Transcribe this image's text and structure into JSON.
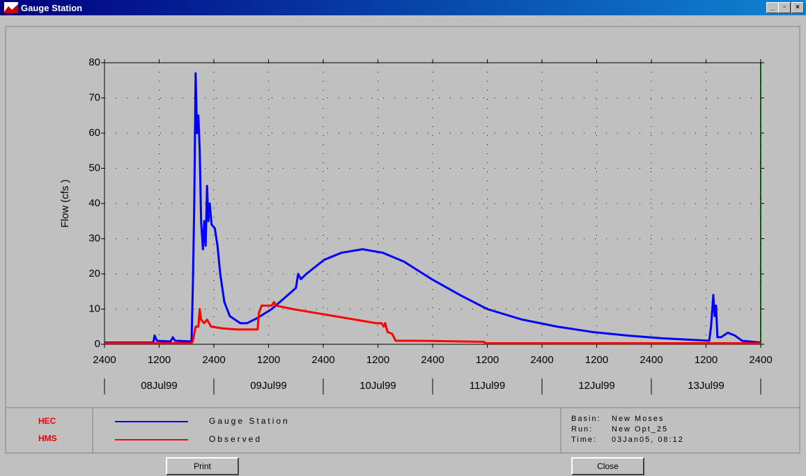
{
  "window": {
    "title": "Gauge Station"
  },
  "chart_data": {
    "type": "line",
    "y_label": "Flow (cfs   )",
    "xlim": [
      0,
      144
    ],
    "ylim": [
      0,
      80
    ],
    "xticks": [
      {
        "value": 0,
        "label": "2400"
      },
      {
        "value": 12,
        "label": "1200"
      },
      {
        "value": 24,
        "label": "2400"
      },
      {
        "value": 36,
        "label": "1200"
      },
      {
        "value": 48,
        "label": "2400"
      },
      {
        "value": 60,
        "label": "1200"
      },
      {
        "value": 72,
        "label": "2400"
      },
      {
        "value": 84,
        "label": "1200"
      },
      {
        "value": 96,
        "label": "2400"
      },
      {
        "value": 108,
        "label": "1200"
      },
      {
        "value": 120,
        "label": "2400"
      },
      {
        "value": 132,
        "label": "1200"
      },
      {
        "value": 144,
        "label": "2400"
      }
    ],
    "yticks": [
      0,
      10,
      20,
      30,
      40,
      50,
      60,
      70,
      80
    ],
    "days": [
      "08Jul99",
      "09Jul99",
      "10Jul99",
      "11Jul99",
      "12Jul99",
      "13Jul99"
    ],
    "grid": true,
    "series": [
      {
        "name": "Gauge Station",
        "color": "#0000ff",
        "x": [
          0,
          10.7,
          11,
          11.5,
          14.5,
          15,
          15.5,
          19.1,
          19.4,
          19.7,
          20,
          20.3,
          20.6,
          20.9,
          21.2,
          21.6,
          21.9,
          22.2,
          22.5,
          22.8,
          23.1,
          23.5,
          24.2,
          24.8,
          25.4,
          26.3,
          27.5,
          29.8,
          31.3,
          33.6,
          36.7,
          42,
          42.5,
          43.1,
          44.3,
          48.2,
          52,
          56.6,
          61.1,
          65.7,
          71.8,
          78,
          84,
          91.7,
          99.4,
          107,
          114.6,
          122.3,
          130,
          132.7,
          133.1,
          133.6,
          133.9,
          134.2,
          134.5,
          135.3,
          136.8,
          138.3,
          139.9,
          144
        ],
        "values": [
          0.5,
          0.5,
          2.5,
          1,
          0.8,
          2,
          1,
          0.8,
          17,
          40,
          77,
          60,
          65,
          55,
          35,
          27,
          35,
          28,
          45,
          35,
          40,
          34,
          33,
          28,
          20,
          12,
          8,
          6,
          6,
          7.5,
          10,
          16,
          20,
          18.5,
          20,
          24,
          26,
          27,
          26,
          23.5,
          18.5,
          14,
          10,
          7,
          5,
          3.5,
          2.5,
          1.7,
          1.2,
          1,
          5,
          14,
          8,
          11,
          2,
          2,
          3.3,
          2.5,
          1,
          0.5
        ]
      },
      {
        "name": "Observed",
        "color": "#ff0000",
        "x": [
          0,
          19.1,
          19.4,
          20,
          20.6,
          20.9,
          21.2,
          21.9,
          22.5,
          23.4,
          26,
          29,
          33.6,
          33.9,
          34.5,
          36.7,
          37.2,
          37.6,
          41.3,
          45.9,
          50.5,
          55,
          59.6,
          60.8,
          61.3,
          61.6,
          62.1,
          63.1,
          63.9,
          68.8,
          83.3,
          83.6,
          144
        ],
        "values": [
          0.3,
          0.3,
          1,
          5,
          5,
          10,
          7,
          6,
          7,
          5,
          4.5,
          4.2,
          4.2,
          9,
          11,
          11,
          12,
          11,
          10,
          9,
          8,
          7,
          6,
          6,
          5,
          6,
          3.5,
          3,
          1,
          1,
          0.7,
          0.3,
          0.3
        ]
      }
    ]
  },
  "info": [
    {
      "label": "Basin:",
      "value": "New Moses"
    },
    {
      "label": "Run:",
      "value": "New Opt_25"
    },
    {
      "label": "Time:",
      "value": "03Jan05, 08:12"
    }
  ],
  "buttons": [
    "Print",
    "Close"
  ]
}
